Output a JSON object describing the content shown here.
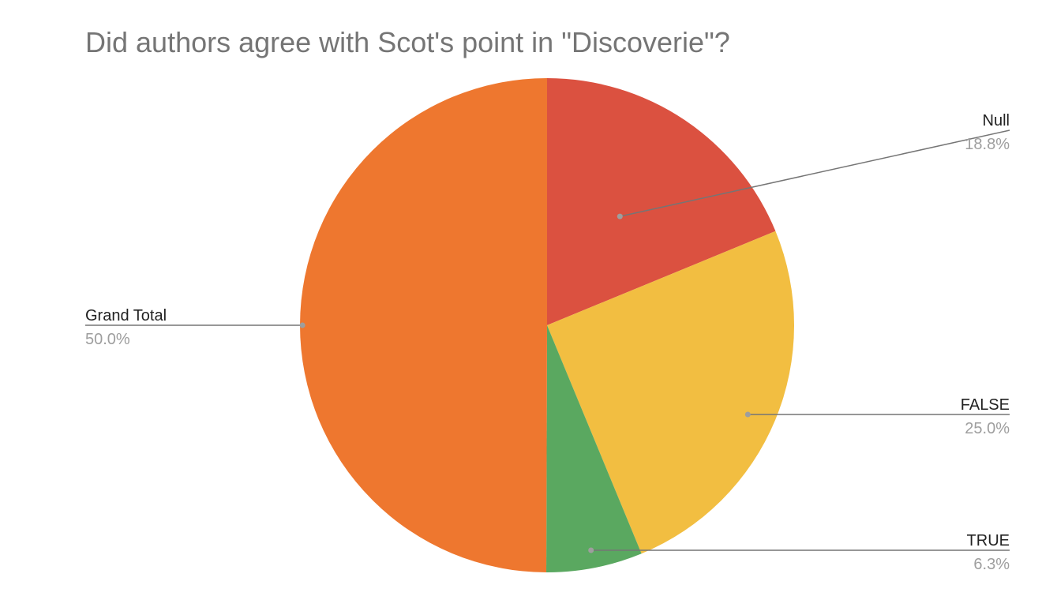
{
  "chart_data": {
    "type": "pie",
    "title": "Did authors agree with Scot's point in \"Discoverie\"?",
    "start_angle_deg": 0,
    "direction": "clockwise",
    "slices": [
      {
        "label": "Null",
        "value": 18.8,
        "display": "18.8%",
        "color": "#db5140"
      },
      {
        "label": "FALSE",
        "value": 25.0,
        "display": "25.0%",
        "color": "#f2be41"
      },
      {
        "label": "TRUE",
        "value": 6.3,
        "display": "6.3%",
        "color": "#5aa860"
      },
      {
        "label": "Grand Total",
        "value": 50.0,
        "display": "50.0%",
        "color": "#ee772f"
      }
    ]
  }
}
